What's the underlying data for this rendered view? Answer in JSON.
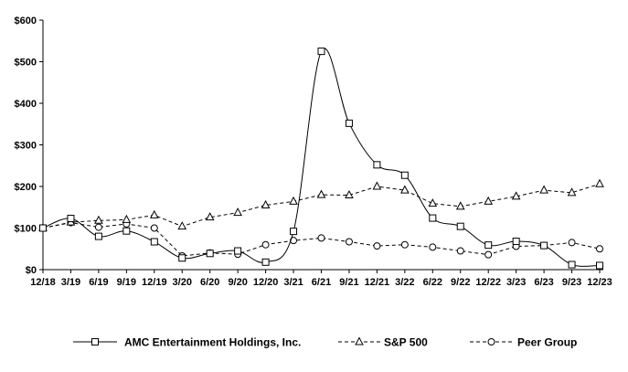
{
  "chart_data": {
    "type": "line",
    "title": "",
    "xlabel": "",
    "ylabel": "",
    "ylim": [
      0,
      600
    ],
    "yticks": [
      0,
      100,
      200,
      300,
      400,
      500,
      600
    ],
    "ytick_labels": [
      "$0",
      "$100",
      "$200",
      "$300",
      "$400",
      "$500",
      "$600"
    ],
    "categories": [
      "12/18",
      "3/19",
      "6/19",
      "9/19",
      "12/19",
      "3/20",
      "6/20",
      "9/20",
      "12/20",
      "3/21",
      "6/21",
      "9/21",
      "12/21",
      "3/22",
      "6/22",
      "9/22",
      "12/22",
      "3/23",
      "6/23",
      "9/23",
      "12/23"
    ],
    "grid": false,
    "legend_position": "bottom",
    "series": [
      {
        "name": "AMC Entertainment Holdings, Inc.",
        "marker": "square",
        "line_style": "solid",
        "smooth": true,
        "values": [
          100,
          123,
          80,
          93,
          67,
          28,
          39,
          45,
          18,
          92,
          525,
          352,
          252,
          227,
          124,
          104,
          59,
          68,
          58,
          12,
          10
        ]
      },
      {
        "name": "S&P 500",
        "marker": "triangle",
        "line_style": "dashed",
        "smooth": false,
        "values": [
          100,
          114,
          118,
          120,
          131,
          104,
          126,
          137,
          155,
          164,
          180,
          179,
          200,
          191,
          159,
          152,
          164,
          176,
          191,
          185,
          206
        ]
      },
      {
        "name": "Peer Group",
        "marker": "circle",
        "line_style": "dashed",
        "smooth": false,
        "values": [
          100,
          113,
          102,
          110,
          100,
          33,
          40,
          37,
          60,
          70,
          76,
          67,
          57,
          60,
          54,
          45,
          36,
          56,
          58,
          65,
          50
        ]
      }
    ]
  }
}
